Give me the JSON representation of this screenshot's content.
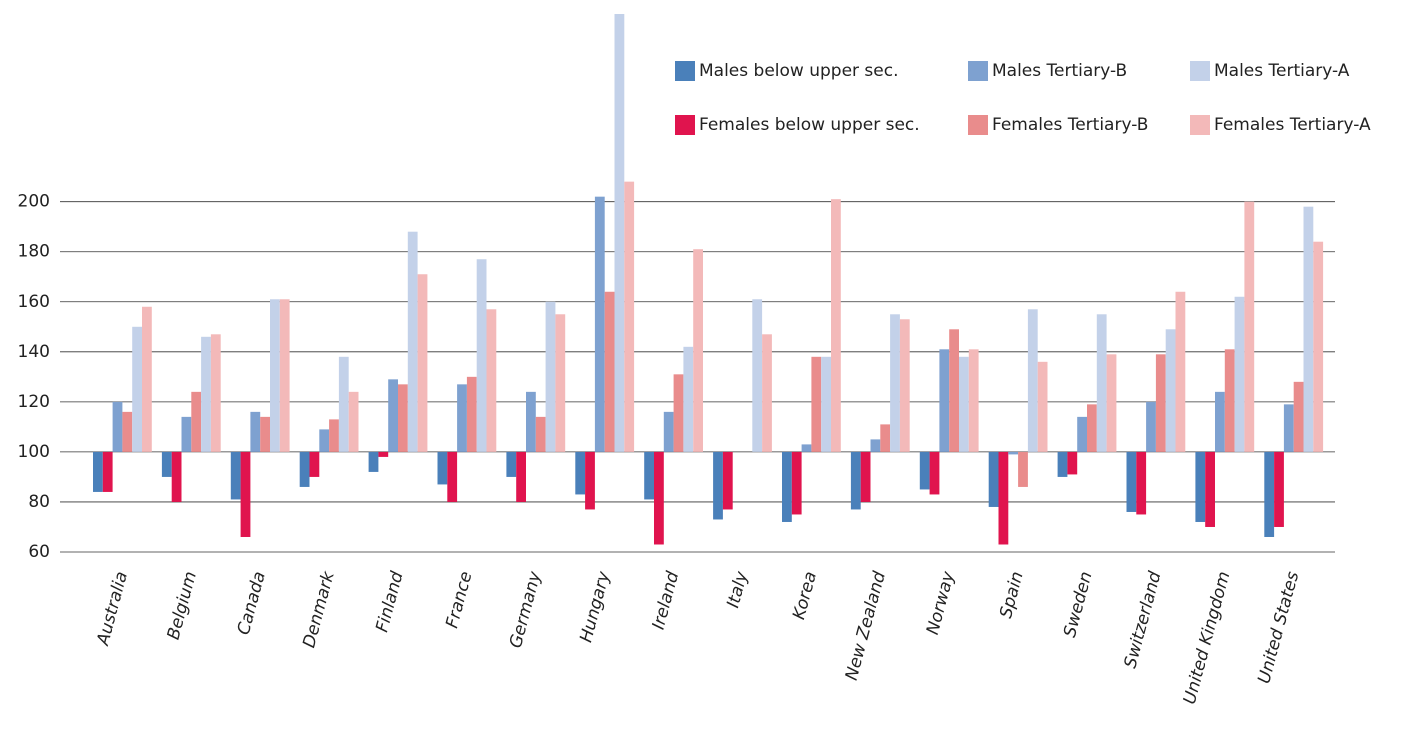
{
  "chart_data": {
    "type": "bar",
    "categories": [
      "Australia",
      "Belgium",
      "Canada",
      "Denmark",
      "Finland",
      "France",
      "Germany",
      "Hungary",
      "Ireland",
      "Italy",
      "Korea",
      "New Zealand",
      "Norway",
      "Spain",
      "Sweden",
      "Switzerland",
      "United Kingdom",
      "United States"
    ],
    "series": [
      {
        "name": "Males below upper sec.",
        "color": "#4a80ba",
        "values": [
          84,
          90,
          81,
          86,
          92,
          87,
          90,
          83,
          81,
          73,
          72,
          77,
          85,
          78,
          90,
          76,
          72,
          66
        ]
      },
      {
        "name": "Females below upper sec.",
        "color": "#e0144e",
        "values": [
          84,
          80,
          66,
          90,
          98,
          80,
          80,
          77,
          63,
          77,
          75,
          80,
          83,
          63,
          91,
          75,
          70,
          70
        ]
      },
      {
        "name": "Males Tertiary-B",
        "color": "#7ea1d0",
        "values": [
          120,
          114,
          116,
          109,
          129,
          127,
          124,
          202,
          116,
          null,
          103,
          105,
          141,
          99,
          114,
          120,
          124,
          119
        ]
      },
      {
        "name": "Females Tertiary-B",
        "color": "#e98c8c",
        "values": [
          116,
          124,
          114,
          113,
          127,
          130,
          114,
          164,
          131,
          null,
          138,
          111,
          149,
          86,
          119,
          139,
          141,
          128
        ]
      },
      {
        "name": "Males Tertiary-A",
        "color": "#c3d1e9",
        "values": [
          150,
          146,
          161,
          138,
          188,
          177,
          160,
          275,
          142,
          161,
          138,
          155,
          138,
          157,
          155,
          149,
          162,
          198
        ]
      },
      {
        "name": "Females Tertiary-A",
        "color": "#f3b9b9",
        "values": [
          158,
          147,
          161,
          124,
          171,
          157,
          155,
          208,
          181,
          147,
          201,
          153,
          141,
          136,
          139,
          164,
          200,
          184
        ]
      }
    ],
    "ylim": [
      60,
      275
    ],
    "yticks": [
      60,
      80,
      100,
      120,
      140,
      160,
      180,
      200
    ],
    "baseline": 100,
    "grid": true
  }
}
